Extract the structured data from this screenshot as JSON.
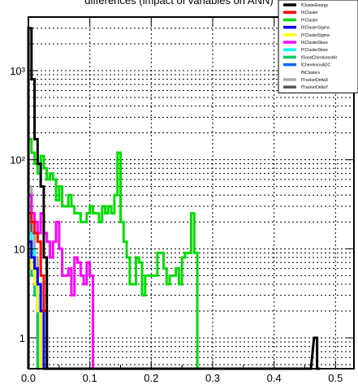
{
  "chart_data": {
    "type": "line",
    "title": "differences (impact of variables on ANN)",
    "xlabel": "",
    "ylabel": "",
    "xlim": [
      0,
      0.53
    ],
    "ylim": [
      0.45,
      4000
    ],
    "log_y": true,
    "grid": true,
    "legend_placement": "top-right",
    "x_ticks": [
      {
        "value": 0.0,
        "label": "0.0"
      },
      {
        "value": 0.1,
        "label": "0.1"
      },
      {
        "value": 0.2,
        "label": "0.2"
      },
      {
        "value": 0.3,
        "label": "0.3"
      },
      {
        "value": 0.4,
        "label": "0.4"
      },
      {
        "value": 0.5,
        "label": "0.5"
      }
    ],
    "y_ticks": [
      {
        "value": 1,
        "label": "1"
      },
      {
        "value": 10,
        "label": "10"
      },
      {
        "value": 100,
        "label": "10²"
      },
      {
        "value": 1000,
        "label": "10³"
      }
    ],
    "series": [
      {
        "name": "fClusterEnergy",
        "color": "#000000",
        "x": [
          0.0,
          0.005,
          0.01,
          0.015,
          0.02,
          0.025,
          0.03,
          0.455,
          0.465,
          0.47
        ],
        "y": [
          3000,
          800,
          170,
          90,
          50,
          8,
          0.45,
          0.45,
          1,
          0.45
        ]
      },
      {
        "name": "fXCluster",
        "color": "#ff0000",
        "x": [
          0.0,
          0.005,
          0.01,
          0.015,
          0.02,
          0.025,
          0.03
        ],
        "y": [
          25,
          20,
          15,
          12,
          5,
          2,
          0.45
        ]
      },
      {
        "name": "fYCluster",
        "color": "#00dd00",
        "x": [
          0.0,
          0.005,
          0.01,
          0.015,
          0.02,
          0.025,
          0.03,
          0.035,
          0.04,
          0.045,
          0.05,
          0.055,
          0.06,
          0.065,
          0.07,
          0.075,
          0.08,
          0.085,
          0.09,
          0.095,
          0.1,
          0.105,
          0.11,
          0.115,
          0.12,
          0.125,
          0.13,
          0.135,
          0.14,
          0.145,
          0.15,
          0.155,
          0.16,
          0.165,
          0.17,
          0.175,
          0.18,
          0.185,
          0.19,
          0.195,
          0.2,
          0.205,
          0.21,
          0.215,
          0.22,
          0.225,
          0.23,
          0.235,
          0.24,
          0.245,
          0.25,
          0.255,
          0.26,
          0.265,
          0.27,
          0.275,
          0.28,
          0.285,
          0.29,
          0.295
        ],
        "y": [
          170,
          120,
          90,
          70,
          110,
          80,
          60,
          70,
          60,
          35,
          50,
          30,
          30,
          40,
          30,
          25,
          25,
          20,
          20,
          25,
          30,
          25,
          25,
          20,
          30,
          25,
          30,
          25,
          40,
          120,
          20,
          12,
          8,
          4,
          4,
          8,
          7,
          3,
          5,
          5,
          5,
          5,
          9,
          9,
          6,
          4,
          5,
          5,
          6,
          4,
          8,
          9,
          9,
          25,
          9,
          0.45,
          0.45,
          0.45,
          0.45,
          0.45
        ]
      },
      {
        "name": "fXClusterSigma",
        "color": "#0000ff",
        "x": [
          0.0,
          0.005,
          0.01,
          0.015,
          0.02,
          0.025
        ],
        "y": [
          12,
          8,
          6,
          4,
          2,
          0.45
        ]
      },
      {
        "name": "fYClusterSigma",
        "color": "#ffff00",
        "x": [
          0.0,
          0.005,
          0.01,
          0.015,
          0.02
        ],
        "y": [
          10,
          6,
          4,
          2,
          0.45
        ]
      },
      {
        "name": "fXClusterSkew",
        "color": "#ff00ff",
        "x": [
          0.0,
          0.005,
          0.01,
          0.015,
          0.02,
          0.025,
          0.03,
          0.035,
          0.04,
          0.045,
          0.05,
          0.055,
          0.06,
          0.065,
          0.07,
          0.075,
          0.08,
          0.085,
          0.09,
          0.095,
          0.1,
          0.105
        ],
        "y": [
          40,
          25,
          20,
          15,
          25,
          15,
          12,
          8,
          12,
          20,
          10,
          5,
          5,
          6,
          3,
          8,
          7,
          5,
          4,
          7,
          5,
          0.45
        ]
      },
      {
        "name": "fYClusterSkew",
        "color": "#00ffff",
        "x": [
          0.0,
          0.005,
          0.01,
          0.015,
          0.02
        ],
        "y": [
          15,
          10,
          6,
          3,
          0.45
        ]
      },
      {
        "name": "fGoodChereknovHit",
        "color": "#00cc66",
        "x": [
          0.0,
          0.005,
          0.01,
          0.015
        ],
        "y": [
          8,
          5,
          3,
          0.45
        ]
      },
      {
        "name": "fChereknovADC",
        "color": "#0066ff",
        "x": [
          0.0,
          0.005,
          0.01,
          0.015,
          0.02
        ],
        "y": [
          10,
          6,
          4,
          2,
          0.45
        ]
      },
      {
        "name": "fNClusters",
        "color": "#ffffff",
        "x": [
          0.0,
          0.005
        ],
        "y": [
          2,
          0.45
        ]
      },
      {
        "name": "fTrackerDeltaX",
        "color": "#aaaaaa",
        "x": [
          0.0,
          0.005,
          0.01,
          0.015
        ],
        "y": [
          50,
          20,
          8,
          0.45
        ]
      },
      {
        "name": "fTrackerDeltaY",
        "color": "#555555",
        "x": [
          0.0,
          0.005,
          0.01,
          0.015
        ],
        "y": [
          40,
          15,
          6,
          0.45
        ]
      }
    ]
  }
}
